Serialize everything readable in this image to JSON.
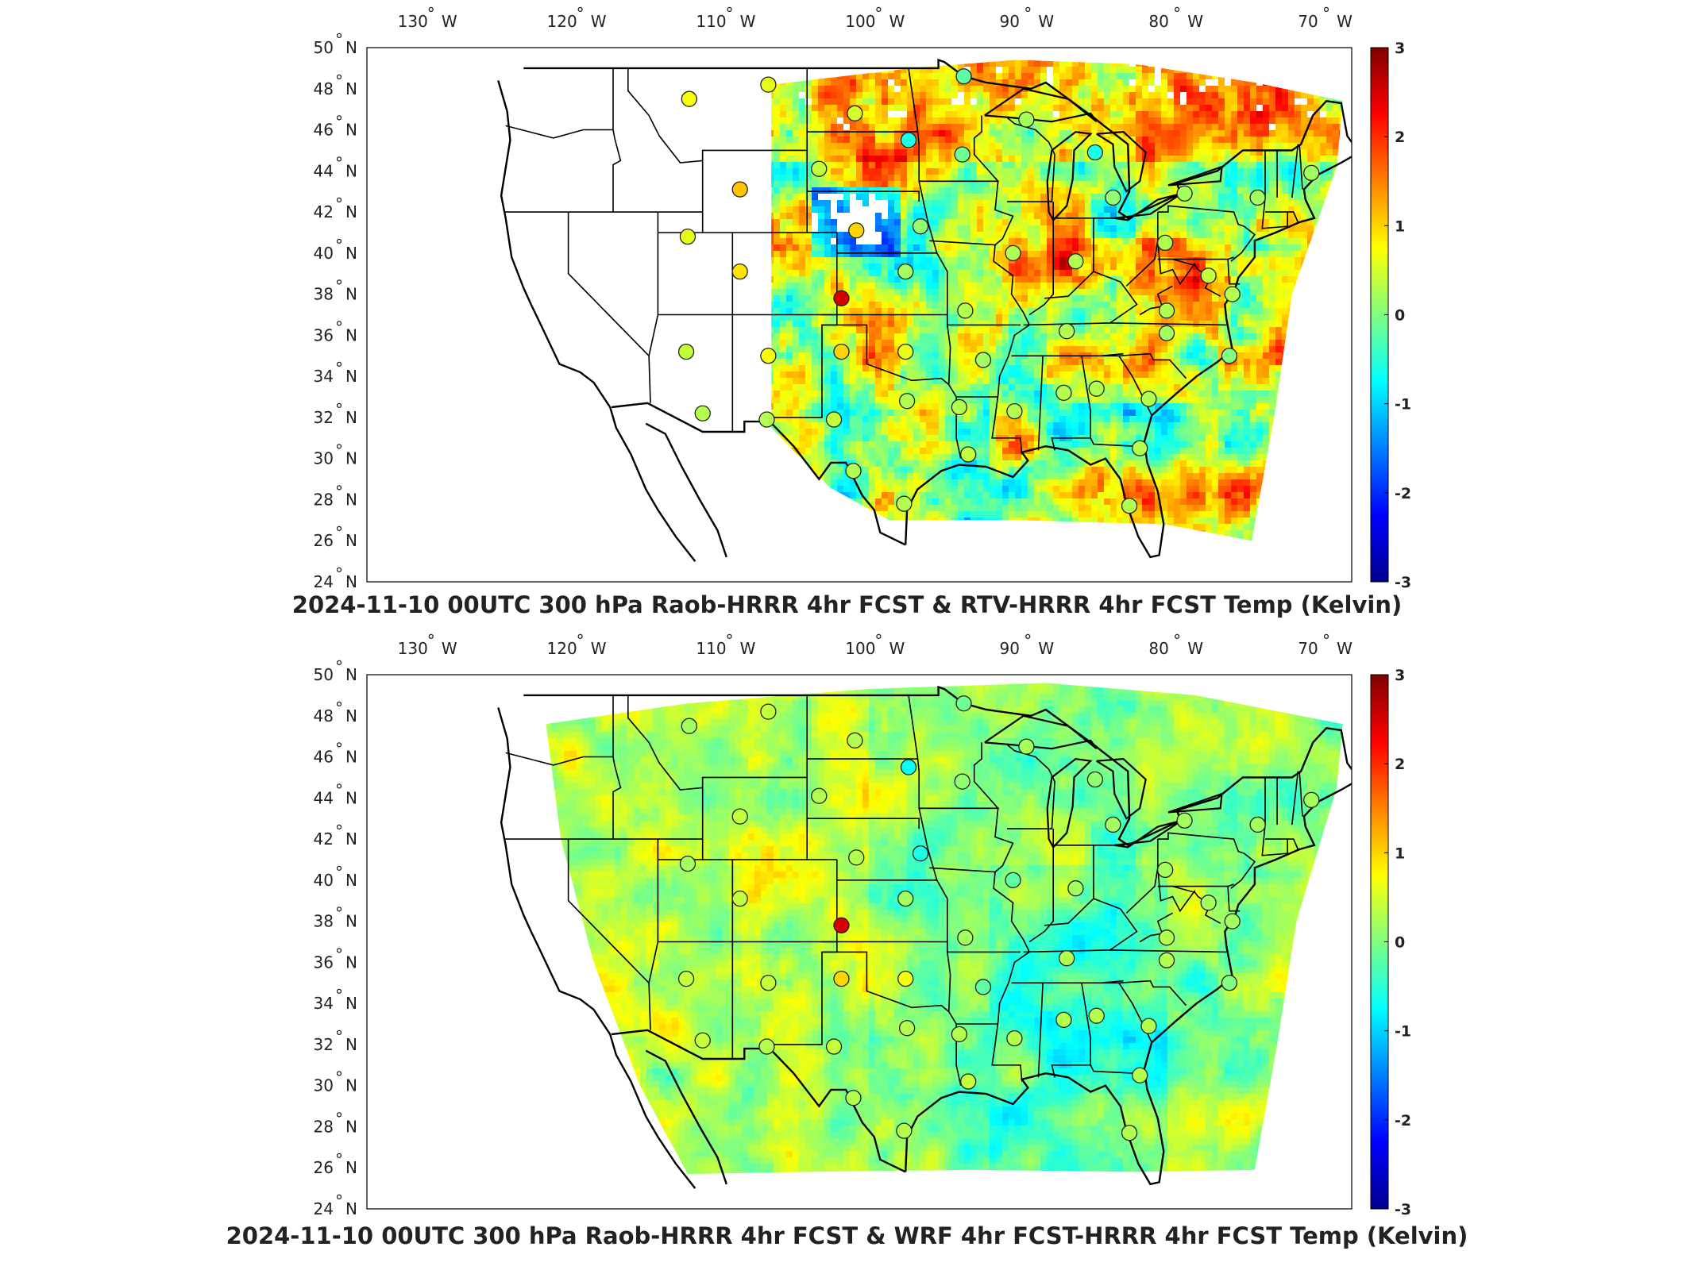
{
  "colors": {
    "frame": "#000000",
    "land_outline": "#000000",
    "colormap": [
      "#00008f",
      "#0000ff",
      "#0080ff",
      "#00ffff",
      "#80ff80",
      "#ffff00",
      "#ff8000",
      "#ff0000",
      "#800000"
    ]
  },
  "lon_ticks": [
    "130",
    "120",
    "110",
    "100",
    "90",
    "80",
    "70"
  ],
  "lon_hemi": "W",
  "lat_ticks": [
    "50",
    "48",
    "46",
    "44",
    "42",
    "40",
    "38",
    "36",
    "34",
    "32",
    "30",
    "28",
    "26",
    "24"
  ],
  "lat_hemi": "N",
  "colorbar_ticks": [
    "3",
    "2",
    "1",
    "0",
    "-1",
    "-2",
    "-3"
  ],
  "clim": [
    -3,
    3
  ],
  "stations": [
    {
      "lon": -111.9,
      "lat": 47.5,
      "top": 0.7,
      "bottom": 0.2
    },
    {
      "lon": -106.6,
      "lat": 48.2,
      "top": 0.6,
      "bottom": 0.4
    },
    {
      "lon": -100.8,
      "lat": 46.8,
      "top": 0.5,
      "bottom": 0.3
    },
    {
      "lon": -97.2,
      "lat": 45.5,
      "top": -0.6,
      "bottom": -0.7
    },
    {
      "lon": -93.5,
      "lat": 48.6,
      "top": -0.2,
      "bottom": -0.1
    },
    {
      "lon": -93.6,
      "lat": 44.8,
      "top": -0.1,
      "bottom": 0.1
    },
    {
      "lon": -89.3,
      "lat": 46.5,
      "top": 0.2,
      "bottom": 0.2
    },
    {
      "lon": -84.7,
      "lat": 44.9,
      "top": -0.6,
      "bottom": 0.1
    },
    {
      "lon": -83.5,
      "lat": 42.7,
      "top": 0.1,
      "bottom": 0.2
    },
    {
      "lon": -78.7,
      "lat": 42.9,
      "top": 0.2,
      "bottom": 0.2
    },
    {
      "lon": -73.8,
      "lat": 42.7,
      "top": 0.2,
      "bottom": 0.2
    },
    {
      "lon": -70.2,
      "lat": 43.9,
      "top": 0.2,
      "bottom": 0.2
    },
    {
      "lon": -103.2,
      "lat": 44.1,
      "top": 0.4,
      "bottom": 0.3
    },
    {
      "lon": -108.5,
      "lat": 43.1,
      "top": 1.1,
      "bottom": 0.4
    },
    {
      "lon": -112.0,
      "lat": 40.8,
      "top": 0.6,
      "bottom": 0.2
    },
    {
      "lon": -108.5,
      "lat": 39.1,
      "top": 0.9,
      "bottom": 0.4
    },
    {
      "lon": -100.7,
      "lat": 41.1,
      "top": 1.0,
      "bottom": 0.3
    },
    {
      "lon": -96.4,
      "lat": 41.3,
      "top": 0.1,
      "bottom": -0.6
    },
    {
      "lon": -97.4,
      "lat": 39.1,
      "top": 0.2,
      "bottom": 0.2
    },
    {
      "lon": -101.7,
      "lat": 37.8,
      "top": 2.5,
      "bottom": 2.5
    },
    {
      "lon": -90.2,
      "lat": 40.0,
      "top": 0.3,
      "bottom": -0.2
    },
    {
      "lon": -86.0,
      "lat": 39.6,
      "top": 0.3,
      "bottom": 0.2
    },
    {
      "lon": -80.0,
      "lat": 40.5,
      "top": 0.3,
      "bottom": 0.2
    },
    {
      "lon": -77.1,
      "lat": 38.9,
      "top": 0.4,
      "bottom": 0.2
    },
    {
      "lon": -75.5,
      "lat": 38.0,
      "top": 0.3,
      "bottom": 0.2
    },
    {
      "lon": -79.9,
      "lat": 37.2,
      "top": 0.3,
      "bottom": 0.3
    },
    {
      "lon": -93.4,
      "lat": 37.2,
      "top": 0.3,
      "bottom": 0.2
    },
    {
      "lon": -86.6,
      "lat": 36.2,
      "top": 0.3,
      "bottom": 0.3
    },
    {
      "lon": -79.9,
      "lat": 36.1,
      "top": 0.2,
      "bottom": 0.3
    },
    {
      "lon": -75.7,
      "lat": 35.0,
      "top": 0.0,
      "bottom": 0.0
    },
    {
      "lon": -97.4,
      "lat": 35.2,
      "top": 0.6,
      "bottom": 0.7
    },
    {
      "lon": -101.7,
      "lat": 35.2,
      "top": 1.0,
      "bottom": 1.0
    },
    {
      "lon": -106.6,
      "lat": 35.0,
      "top": 0.7,
      "bottom": 0.4
    },
    {
      "lon": -112.1,
      "lat": 35.2,
      "top": 0.4,
      "bottom": 0.4
    },
    {
      "lon": -111.0,
      "lat": 32.2,
      "top": 0.3,
      "bottom": 0.4
    },
    {
      "lon": -106.7,
      "lat": 31.9,
      "top": 0.3,
      "bottom": 0.3
    },
    {
      "lon": -102.2,
      "lat": 31.9,
      "top": 0.4,
      "bottom": 0.4
    },
    {
      "lon": -97.3,
      "lat": 32.8,
      "top": 0.3,
      "bottom": 0.3
    },
    {
      "lon": -92.2,
      "lat": 34.8,
      "top": 0.2,
      "bottom": -0.2
    },
    {
      "lon": -93.8,
      "lat": 32.5,
      "top": 0.3,
      "bottom": 0.3
    },
    {
      "lon": -90.1,
      "lat": 32.3,
      "top": 0.3,
      "bottom": 0.3
    },
    {
      "lon": -86.8,
      "lat": 33.2,
      "top": 0.3,
      "bottom": 0.3
    },
    {
      "lon": -84.6,
      "lat": 33.4,
      "top": 0.3,
      "bottom": 0.3
    },
    {
      "lon": -81.1,
      "lat": 32.9,
      "top": 0.3,
      "bottom": 0.3
    },
    {
      "lon": -81.7,
      "lat": 30.5,
      "top": 0.3,
      "bottom": 0.3
    },
    {
      "lon": -93.2,
      "lat": 30.2,
      "top": 0.4,
      "bottom": 0.4
    },
    {
      "lon": -100.9,
      "lat": 29.4,
      "top": 0.3,
      "bottom": 0.3
    },
    {
      "lon": -97.5,
      "lat": 27.8,
      "top": 0.3,
      "bottom": 0.3
    },
    {
      "lon": -82.4,
      "lat": 27.7,
      "top": 0.3,
      "bottom": 0.3
    }
  ],
  "panels": [
    {
      "title": "2024-11-10 00UTC 300 hPa Raob-HRRR 4hr FCST & RTV-HRRR 4hr FCST Temp (Kelvin)",
      "field": "rtv-hrrr"
    },
    {
      "title": "2024-11-10 00UTC 300 hPa Raob-HRRR 4hr FCST & WRF 4hr FCST-HRRR 4hr FCST Temp (Kelvin)",
      "field": "wrf-hrrr"
    }
  ]
}
